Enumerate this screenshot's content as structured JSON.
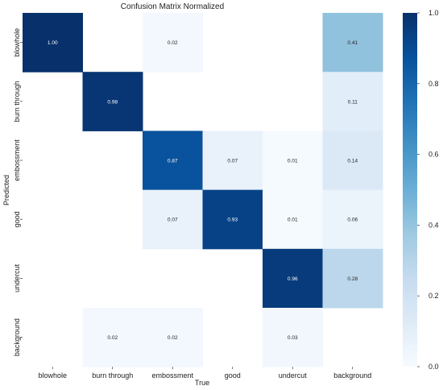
{
  "chart_data": {
    "type": "heatmap",
    "title": "Confusion Matrix Normalized",
    "xlabel": "True",
    "ylabel": "Predicted",
    "x_categories": [
      "blowhole",
      "burn through",
      "embossment",
      "good",
      "undercut",
      "background"
    ],
    "y_categories": [
      "blowhole",
      "burn through",
      "embossment",
      "good",
      "undercut",
      "background"
    ],
    "values": [
      [
        1.0,
        null,
        0.02,
        null,
        null,
        0.41
      ],
      [
        null,
        0.98,
        null,
        null,
        null,
        0.11
      ],
      [
        null,
        null,
        0.87,
        0.07,
        0.01,
        0.14
      ],
      [
        null,
        null,
        0.07,
        0.93,
        0.01,
        0.06
      ],
      [
        null,
        null,
        null,
        null,
        0.96,
        0.28
      ],
      [
        null,
        0.02,
        0.02,
        null,
        0.03,
        null
      ]
    ],
    "value_format": "0.00",
    "colorscale": "Blues",
    "color_range": [
      0.0,
      1.0
    ],
    "colorbar_ticks": [
      "0.0",
      "0.2",
      "0.4",
      "0.6",
      "0.8",
      "1.0"
    ],
    "colorbar_stops": [
      "#f7fbff",
      "#deebf7",
      "#c6dbef",
      "#9ecae1",
      "#6baed6",
      "#4292c6",
      "#2171b5",
      "#08519c",
      "#08306b"
    ]
  }
}
